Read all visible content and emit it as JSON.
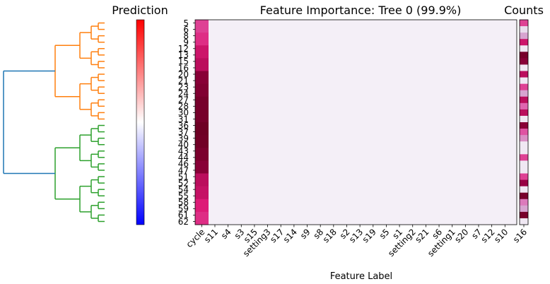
{
  "titles": {
    "prediction": "Prediction",
    "heatmap": "Feature Importance: Tree 0 (99.9%)",
    "counts": "Counts"
  },
  "xlabel": "Feature Label",
  "chart_data": [
    {
      "type": "heatmap",
      "title": "Feature Importance: Tree 0 (99.9%)",
      "xlabel": "Feature Label",
      "ylabel": "",
      "x": [
        "cycle",
        "s11",
        "s4",
        "s3",
        "s15",
        "setting3",
        "s17",
        "s14",
        "s9",
        "s8",
        "s18",
        "s2",
        "s13",
        "s19",
        "s5",
        "s1",
        "setting2",
        "s21",
        "s6",
        "setting1",
        "s20",
        "s7",
        "s12",
        "s10",
        "s16"
      ],
      "y": [
        "5",
        "6",
        "8",
        "9",
        "12",
        "13",
        "15",
        "16",
        "20",
        "21",
        "23",
        "24",
        "27",
        "28",
        "30",
        "31",
        "36",
        "37",
        "39",
        "40",
        "43",
        "44",
        "46",
        "47",
        "51",
        "52",
        "54",
        "55",
        "58",
        "59",
        "61",
        "62"
      ],
      "cycle_importance": [
        0.55,
        0.55,
        0.6,
        0.6,
        0.7,
        0.7,
        0.75,
        0.75,
        0.9,
        0.9,
        0.92,
        0.92,
        0.95,
        0.95,
        0.95,
        0.95,
        0.98,
        0.98,
        0.97,
        0.97,
        0.94,
        0.94,
        0.9,
        0.9,
        0.75,
        0.75,
        0.72,
        0.72,
        0.65,
        0.65,
        0.6,
        0.6
      ],
      "other_importance": 0.02,
      "colormap": "PuRd"
    },
    {
      "type": "heatmap",
      "title": "Counts",
      "y": [
        "5",
        "6",
        "8",
        "9",
        "12",
        "13",
        "15",
        "16",
        "20",
        "21",
        "23",
        "24",
        "27",
        "28",
        "30",
        "31",
        "36",
        "37",
        "39",
        "40",
        "43",
        "44",
        "46",
        "47",
        "51",
        "52",
        "54",
        "55",
        "58",
        "59",
        "61",
        "62"
      ],
      "values": [
        0.55,
        0.1,
        0.3,
        0.7,
        0.05,
        0.95,
        0.9,
        0.05,
        0.75,
        0.05,
        0.55,
        0.3,
        0.75,
        0.45,
        0.75,
        0.05,
        0.9,
        0.5,
        0.35,
        0.05,
        0.05,
        0.55,
        0.05,
        0.05,
        0.55,
        0.85,
        0.05,
        0.95,
        0.4,
        0.3,
        0.95,
        0.05
      ],
      "colormap": "PuRd"
    },
    {
      "type": "heatmap",
      "title": "Prediction",
      "colormap": "bwr",
      "orientation": "vertical colorbar"
    },
    {
      "type": "dendrogram",
      "leaves": 32,
      "orientation": "left",
      "colors": {
        "root": "#1f77b4",
        "cluster_a": "#ff7f0e",
        "cluster_b": "#2ca02c"
      }
    }
  ]
}
